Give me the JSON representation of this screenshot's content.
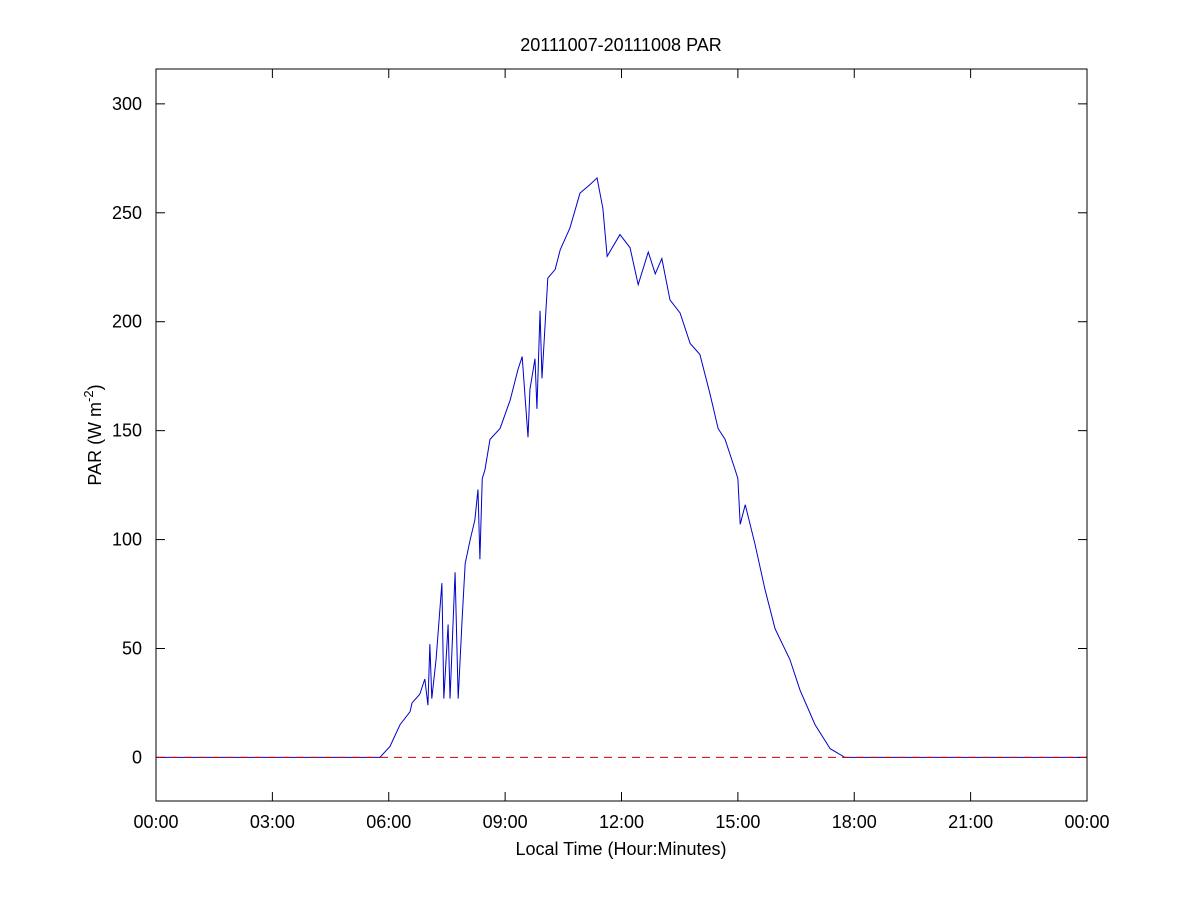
{
  "chart_data": {
    "type": "line",
    "title": "20111007-20111008 PAR",
    "xlabel": "Local Time (Hour:Minutes)",
    "ylabel": [
      "PAR (W m",
      "-2",
      ")"
    ],
    "xlim": [
      0,
      24
    ],
    "ylim": [
      -20,
      316
    ],
    "xticks": [
      {
        "value": 0,
        "label": "00:00"
      },
      {
        "value": 3,
        "label": "03:00"
      },
      {
        "value": 6,
        "label": "06:00"
      },
      {
        "value": 9,
        "label": "09:00"
      },
      {
        "value": 12,
        "label": "12:00"
      },
      {
        "value": 15,
        "label": "15:00"
      },
      {
        "value": 18,
        "label": "18:00"
      },
      {
        "value": 21,
        "label": "21:00"
      },
      {
        "value": 24,
        "label": "00:00"
      }
    ],
    "yticks": [
      0,
      50,
      100,
      150,
      200,
      250,
      300
    ],
    "series": [
      {
        "color": "#0000cc",
        "dash": false,
        "x": [
          0,
          5.77,
          6.03,
          6.29,
          6.55,
          6.6,
          6.8,
          6.93,
          7.01,
          7.06,
          7.11,
          7.22,
          7.37,
          7.42,
          7.53,
          7.58,
          7.71,
          7.79,
          7.89,
          7.97,
          8.1,
          8.22,
          8.3,
          8.35,
          8.41,
          8.48,
          8.61,
          8.87,
          9.13,
          9.33,
          9.44,
          9.52,
          9.59,
          9.64,
          9.77,
          9.82,
          9.9,
          9.95,
          10.1,
          10.29,
          10.42,
          10.67,
          10.93,
          11.19,
          11.37,
          11.52,
          11.63,
          11.96,
          12.22,
          12.43,
          12.69,
          12.87,
          13.04,
          13.25,
          13.51,
          13.77,
          14.02,
          14.28,
          14.49,
          14.67,
          14.93,
          15.0,
          15.06,
          15.19,
          15.44,
          15.7,
          15.96,
          16.34,
          16.6,
          16.99,
          17.38,
          17.76,
          24
        ],
        "values": [
          0,
          0,
          5,
          15,
          21,
          25,
          29,
          36,
          24,
          52,
          27,
          45,
          80,
          27,
          61,
          27,
          85,
          27,
          63,
          89,
          100,
          109,
          123,
          91,
          128,
          132,
          146,
          151,
          164,
          178,
          184,
          164,
          147,
          169,
          183,
          160,
          205,
          174,
          220,
          224,
          233,
          243,
          259,
          263,
          266,
          252,
          230,
          240,
          234,
          217,
          232,
          222,
          229,
          210,
          204,
          190,
          185,
          167,
          151,
          146,
          132,
          128,
          107,
          116,
          98,
          77,
          59,
          45,
          31,
          15,
          4,
          0,
          0
        ]
      },
      {
        "color": "#cc0000",
        "dash": true,
        "x": [
          0,
          24
        ],
        "values": [
          0,
          0
        ]
      }
    ]
  }
}
